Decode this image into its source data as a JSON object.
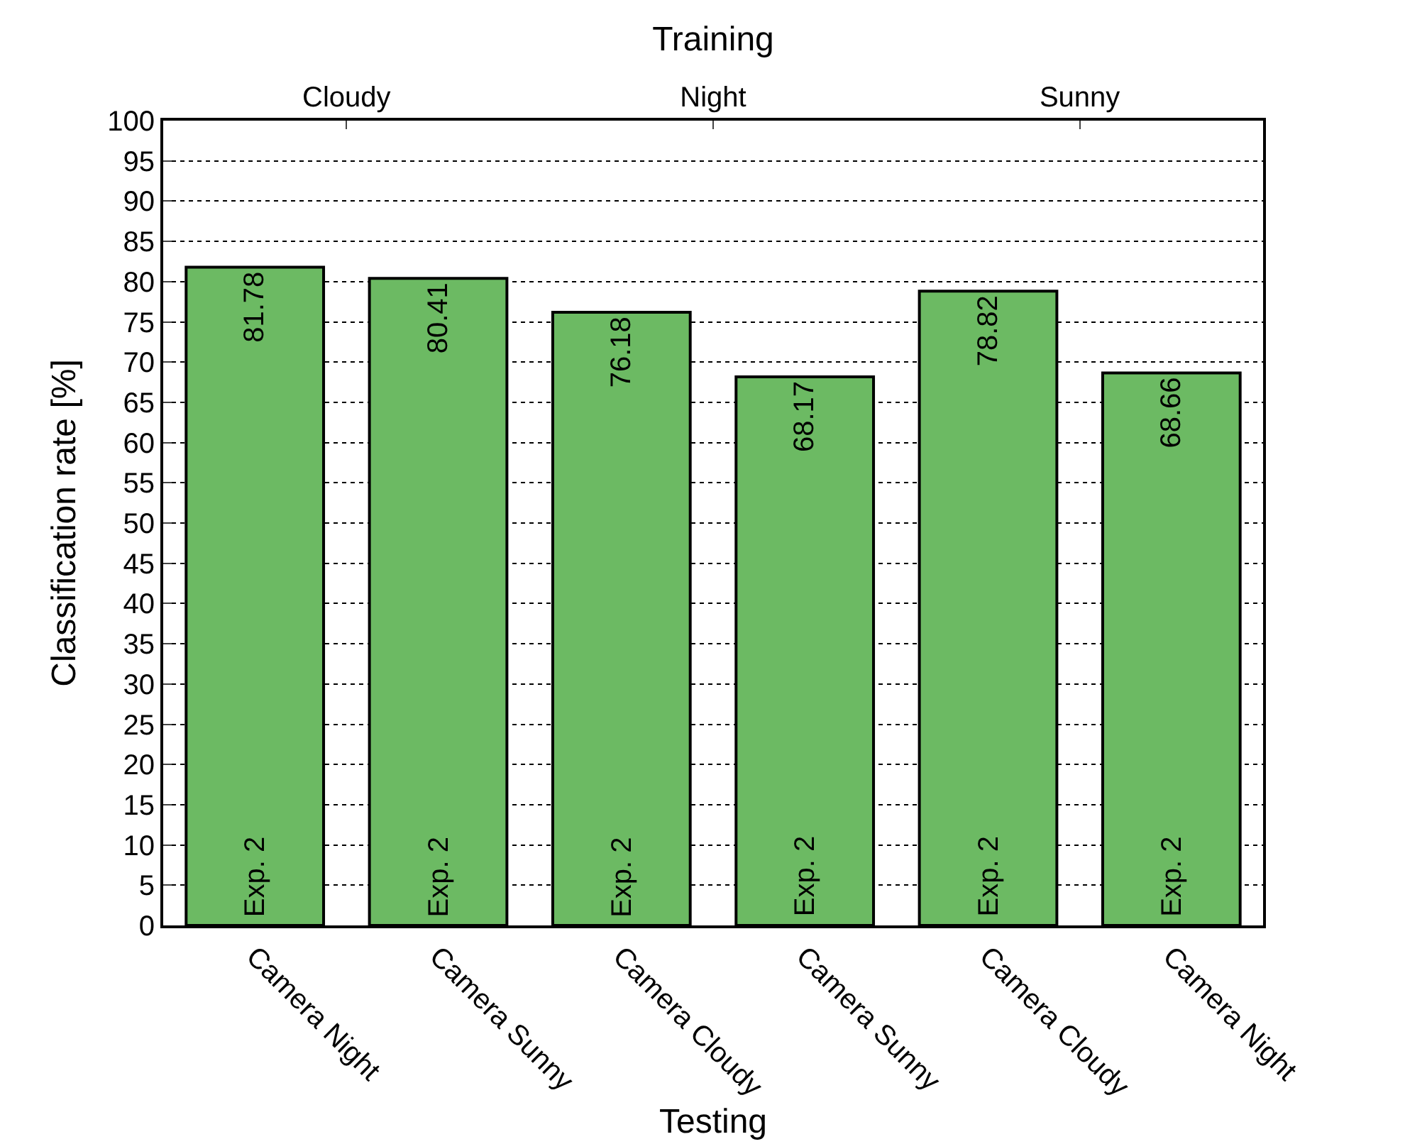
{
  "chart_data": {
    "type": "bar",
    "categories": [
      "Camera Night",
      "Camera Sunny",
      "Camera Cloudy",
      "Camera Sunny",
      "Camera Cloudy",
      "Camera Night"
    ],
    "values": [
      81.78,
      80.41,
      76.18,
      68.17,
      78.82,
      68.66
    ],
    "color": "#6cba63",
    "data_labels": true,
    "xlabel": "Testing",
    "ylabel": "Classification rate [%]",
    "x2label": "Training",
    "annotations": [
      "Cloudy",
      "Night",
      "Sunny",
      "Exp. 2",
      "Exp. 2",
      "Exp. 2",
      "Exp. 2",
      "Exp. 2",
      "Exp. 2"
    ],
    "ylim": [
      0,
      100
    ],
    "yticks": [
      0,
      5,
      10,
      15,
      20,
      25,
      30,
      35,
      40,
      45,
      50,
      55,
      60,
      65,
      70,
      75,
      80,
      85,
      90,
      95,
      100
    ],
    "grid": "y",
    "legend": false
  }
}
